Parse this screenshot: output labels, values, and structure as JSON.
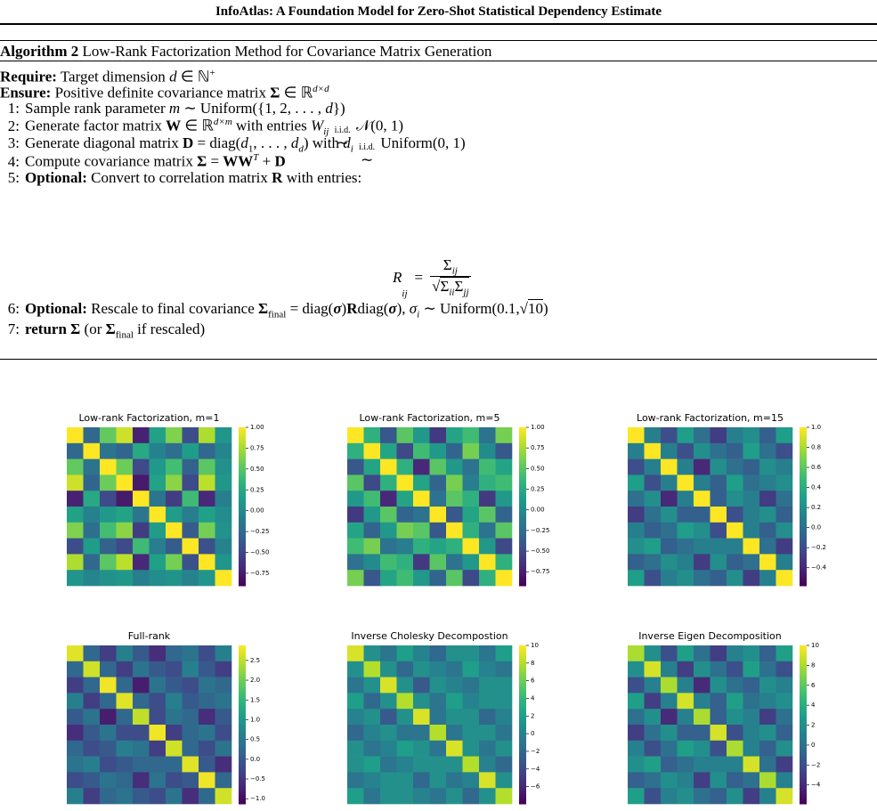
{
  "header": {
    "title": "InfoAtlas: A Foundation Model for Zero-Shot Statistical Dependency Estimate"
  },
  "algorithm": {
    "label": "Algorithm 2",
    "caption": "Low-Rank Factorization Method for Covariance Matrix Generation",
    "require": [
      "Require:",
      "Target dimension",
      "d",
      "∈ ℕ",
      "+"
    ],
    "ensure": [
      "Ensure:",
      "Positive definite covariance matrix",
      "Σ",
      "∈ ℝ",
      "d×d"
    ],
    "step1": [
      "1:",
      "Sample rank parameter",
      "m",
      "∼ Uniform({1, 2, . . . , ",
      "d",
      "})"
    ],
    "step2": [
      "2:",
      "Generate factor matrix",
      "W",
      "∈ ℝ",
      "d×m",
      "with entries",
      "W",
      "ij",
      "i.i.d.",
      "∼",
      "𝒩(0, 1)"
    ],
    "step3": [
      "3:",
      "Generate diagonal matrix",
      "D",
      "= diag(",
      "d",
      "1",
      ", . . . , ",
      "d",
      "d",
      ") with",
      "d",
      "i",
      "i.i.d.",
      "∼",
      "Uniform(0, 1)"
    ],
    "step4": [
      "4:",
      "Compute covariance matrix",
      "Σ",
      "=",
      "WW",
      "T",
      "+",
      "D"
    ],
    "step5": [
      "5:",
      "Optional:",
      "Convert to correlation matrix",
      "R",
      "with entries:"
    ],
    "equation": [
      "R",
      "ij",
      "=",
      "Σ",
      "ij",
      "Σ",
      "ii",
      "Σ",
      "jj"
    ],
    "step6": [
      "6:",
      "Optional:",
      "Rescale to final covariance",
      "Σ",
      "final",
      "= diag(",
      "σ",
      ")",
      "R",
      "diag(",
      "σ",
      "),",
      "σ",
      "i",
      "∼ Uniform(0.1,",
      "√",
      "10",
      ")"
    ],
    "step7": [
      "7:",
      "return",
      "Σ",
      "(or",
      "Σ",
      "final",
      "if rescaled)"
    ]
  },
  "chart_data": [
    {
      "type": "heatmap",
      "title": "Low-rank Factorization, m=1",
      "colormap": "viridis",
      "clim": [
        -0.9,
        1.0
      ],
      "cticks": [
        {
          "value": 1,
          "label": "1.00"
        },
        {
          "value": 0.75,
          "label": "0.75"
        },
        {
          "value": 0.5,
          "label": "0.50"
        },
        {
          "value": 0.25,
          "label": "0.25"
        },
        {
          "value": 0,
          "label": "0.00"
        },
        {
          "value": -0.25,
          "label": "−0.25"
        },
        {
          "value": -0.5,
          "label": "−0.50"
        },
        {
          "value": -0.75,
          "label": "−0.75"
        }
      ],
      "values": [
        [
          1,
          -0.27,
          0.54,
          0.86,
          -0.72,
          0.18,
          0.63,
          -0.45,
          0.77,
          0.09
        ],
        [
          -0.27,
          1,
          -0.18,
          -0.29,
          0.24,
          -0.06,
          -0.21,
          0.15,
          -0.26,
          -0.03
        ],
        [
          0.54,
          -0.18,
          1,
          0.57,
          -0.48,
          0.12,
          0.42,
          -0.3,
          0.51,
          0.06
        ],
        [
          0.86,
          -0.29,
          0.57,
          1,
          -0.76,
          0.19,
          0.67,
          -0.48,
          0.81,
          0.1
        ],
        [
          -0.72,
          0.24,
          -0.48,
          -0.76,
          1,
          -0.16,
          -0.56,
          0.4,
          -0.68,
          -0.08
        ],
        [
          0.18,
          -0.06,
          0.12,
          0.19,
          -0.16,
          1,
          0.14,
          -0.1,
          0.17,
          0.02
        ],
        [
          0.63,
          -0.21,
          0.42,
          0.67,
          -0.56,
          0.14,
          1,
          -0.35,
          0.6,
          0.07
        ],
        [
          -0.45,
          0.15,
          -0.3,
          -0.48,
          0.4,
          -0.1,
          -0.35,
          1,
          -0.43,
          -0.05
        ],
        [
          0.77,
          -0.26,
          0.51,
          0.81,
          -0.68,
          0.17,
          0.6,
          -0.43,
          1,
          0.09
        ],
        [
          0.09,
          -0.03,
          0.06,
          0.1,
          -0.08,
          0.02,
          0.07,
          -0.05,
          0.09,
          1
        ]
      ]
    },
    {
      "type": "heatmap",
      "title": "Low-rank Factorization, m=5",
      "colormap": "viridis",
      "clim": [
        -0.92,
        1.0
      ],
      "cticks": [
        {
          "value": 1,
          "label": "1.00"
        },
        {
          "value": 0.75,
          "label": "0.75"
        },
        {
          "value": 0.5,
          "label": "0.50"
        },
        {
          "value": 0.25,
          "label": "0.25"
        },
        {
          "value": 0,
          "label": "0.00"
        },
        {
          "value": -0.25,
          "label": "−0.25"
        },
        {
          "value": -0.5,
          "label": "−0.50"
        },
        {
          "value": -0.75,
          "label": "−0.75"
        }
      ],
      "values": [
        [
          1,
          0.3,
          -0.4,
          0.5,
          0.1,
          -0.6,
          0.2,
          0.4,
          -0.2,
          0.6
        ],
        [
          0.3,
          1,
          0.2,
          -0.5,
          0.4,
          0.1,
          -0.3,
          0.6,
          0,
          -0.4
        ],
        [
          -0.4,
          0.2,
          1,
          0.3,
          -0.7,
          0.5,
          0.1,
          -0.2,
          0.4,
          0.2
        ],
        [
          0.5,
          -0.5,
          0.3,
          1,
          0.2,
          -0.3,
          0.6,
          -0.1,
          0.3,
          0.4
        ],
        [
          0.1,
          0.4,
          -0.7,
          0.2,
          1,
          -0.2,
          0.5,
          0.3,
          -0.6,
          0.1
        ],
        [
          -0.6,
          0.1,
          0.5,
          -0.3,
          -0.2,
          1,
          -0.4,
          0.2,
          0.5,
          -0.3
        ],
        [
          0.2,
          -0.3,
          0.1,
          0.6,
          0.5,
          -0.4,
          1,
          0.3,
          -0.2,
          0.5
        ],
        [
          0.4,
          0.6,
          -0.2,
          -0.1,
          0.3,
          0.2,
          0.3,
          1,
          0.1,
          -0.5
        ],
        [
          -0.2,
          0,
          0.4,
          0.3,
          -0.6,
          0.5,
          -0.2,
          0.1,
          1,
          0.3
        ],
        [
          0.6,
          -0.4,
          0.2,
          0.4,
          0.1,
          -0.3,
          0.5,
          -0.5,
          0.3,
          1
        ]
      ]
    },
    {
      "type": "heatmap",
      "title": "Low-rank Factorization, m=15",
      "colormap": "viridis",
      "clim": [
        -0.58,
        1.0
      ],
      "cticks": [
        {
          "value": 1,
          "label": "1.0"
        },
        {
          "value": 0.8,
          "label": "0.8"
        },
        {
          "value": 0.6,
          "label": "0.6"
        },
        {
          "value": 0.4,
          "label": "0.4"
        },
        {
          "value": 0.2,
          "label": "0.2"
        },
        {
          "value": 0,
          "label": "0.0"
        },
        {
          "value": -0.2,
          "label": "−0.2"
        },
        {
          "value": -0.4,
          "label": "−0.4"
        }
      ],
      "values": [
        [
          1,
          0.1,
          -0.2,
          0.3,
          0,
          -0.3,
          0.1,
          0.2,
          -0.1,
          0.3
        ],
        [
          0.1,
          1,
          0.1,
          -0.2,
          0.2,
          0,
          -0.1,
          0.3,
          0,
          -0.2
        ],
        [
          -0.2,
          0.1,
          1,
          0.1,
          -0.4,
          0.2,
          0,
          -0.1,
          0.2,
          0.1
        ],
        [
          0.3,
          -0.2,
          0.1,
          1,
          0.1,
          -0.1,
          0.3,
          0,
          0.1,
          0.2
        ],
        [
          0,
          0.2,
          -0.4,
          0.1,
          1,
          -0.1,
          0.2,
          0.1,
          -0.3,
          0
        ],
        [
          -0.3,
          0,
          0.2,
          -0.1,
          -0.1,
          1,
          -0.2,
          0.1,
          0.2,
          -0.1
        ],
        [
          0.1,
          -0.1,
          0,
          0.3,
          0.2,
          -0.2,
          1,
          0.1,
          -0.1,
          0.2
        ],
        [
          0.2,
          0.3,
          -0.1,
          0,
          0.1,
          0.1,
          0.1,
          1,
          0,
          -0.3
        ],
        [
          -0.1,
          0,
          0.2,
          0.1,
          -0.3,
          0.2,
          -0.1,
          0,
          1,
          0.1
        ],
        [
          0.3,
          -0.2,
          0.1,
          0.2,
          0,
          -0.1,
          0.2,
          -0.3,
          0.1,
          1
        ]
      ]
    },
    {
      "type": "heatmap",
      "title": "Full-rank",
      "colormap": "viridis",
      "clim": [
        -1.13,
        2.88
      ],
      "cticks": [
        2.5,
        {
          "value": 2,
          "label": "2.0"
        },
        1.5,
        {
          "value": 1,
          "label": "1.0"
        },
        0.5,
        {
          "value": 0,
          "label": "0.0"
        },
        {
          "value": -0.5,
          "label": "−0.5"
        },
        {
          "value": -1,
          "label": "−1.0"
        }
      ],
      "values": [
        [
          2.7,
          0.2,
          -0.4,
          0.6,
          0,
          -0.6,
          0.2,
          0.4,
          -0.2,
          0.6
        ],
        [
          0.2,
          2.6,
          0.2,
          -0.4,
          0.4,
          0,
          -0.2,
          0.6,
          0,
          -0.4
        ],
        [
          -0.4,
          0.2,
          2.8,
          0.2,
          -0.8,
          0.4,
          0,
          -0.2,
          0.4,
          0.2
        ],
        [
          0.6,
          -0.4,
          0.2,
          2.7,
          0.2,
          -0.2,
          0.6,
          0,
          0.2,
          0.4
        ],
        [
          0,
          0.4,
          -0.8,
          0.2,
          2.5,
          -0.2,
          0.4,
          0.2,
          -0.6,
          0
        ],
        [
          -0.6,
          0,
          0.4,
          -0.2,
          -0.2,
          2.8,
          -0.4,
          0.2,
          0.4,
          -0.2
        ],
        [
          0.2,
          -0.2,
          0,
          0.6,
          0.4,
          -0.4,
          2.6,
          0.2,
          -0.2,
          0.4
        ],
        [
          0.4,
          0.6,
          -0.2,
          0,
          0.2,
          0.2,
          0.2,
          2.7,
          0,
          -0.6
        ],
        [
          -0.2,
          0,
          0.4,
          0.2,
          -0.6,
          0.4,
          -0.2,
          0,
          2.8,
          0.2
        ],
        [
          0.6,
          -0.4,
          0.2,
          0.4,
          0,
          -0.2,
          0.4,
          -0.6,
          0.2,
          2.6
        ]
      ]
    },
    {
      "type": "heatmap",
      "title": "Inverse Cholesky Decompostion",
      "colormap": "viridis",
      "clim": [
        -7.96,
        10
      ],
      "cticks": [
        10,
        8,
        6,
        4,
        2,
        0,
        {
          "value": -2,
          "label": "−2"
        },
        {
          "value": -4,
          "label": "−4"
        },
        {
          "value": -6,
          "label": "−6"
        }
      ],
      "values": [
        [
          9,
          1,
          -1,
          2,
          0,
          -2,
          1,
          1,
          -1,
          2
        ],
        [
          1,
          8,
          1,
          -2,
          1,
          0,
          -1,
          2,
          0,
          -1
        ],
        [
          -1,
          1,
          9,
          1,
          -3,
          1,
          0,
          -1,
          1,
          1
        ],
        [
          2,
          -2,
          1,
          8,
          1,
          -1,
          2,
          0,
          1,
          1
        ],
        [
          0,
          1,
          -3,
          1,
          9,
          -1,
          1,
          1,
          -2,
          0
        ],
        [
          -2,
          0,
          1,
          -1,
          -1,
          8,
          -1,
          1,
          1,
          -1
        ],
        [
          1,
          -1,
          0,
          2,
          1,
          -1,
          9,
          1,
          -1,
          1
        ],
        [
          1,
          2,
          -1,
          0,
          1,
          1,
          1,
          8,
          0,
          -2
        ],
        [
          -1,
          0,
          1,
          1,
          -2,
          1,
          -1,
          0,
          9,
          1
        ],
        [
          2,
          -1,
          1,
          1,
          0,
          -1,
          1,
          -2,
          1,
          8
        ]
      ]
    },
    {
      "type": "heatmap",
      "title": "Inverse Eigen Decomposition",
      "colormap": "viridis",
      "clim": [
        -5.9,
        10
      ],
      "cticks": [
        10,
        8,
        6,
        4,
        2,
        0,
        {
          "value": -2,
          "label": "−2"
        },
        {
          "value": -4,
          "label": "−4"
        }
      ],
      "values": [
        [
          8,
          2,
          -2,
          3,
          0,
          -3,
          1,
          2,
          -1,
          3
        ],
        [
          2,
          9,
          1,
          -3,
          2,
          0,
          -2,
          3,
          0,
          -2
        ],
        [
          -2,
          1,
          8,
          1,
          -4,
          2,
          0,
          -1,
          2,
          1
        ],
        [
          3,
          -3,
          1,
          9,
          1,
          -1,
          3,
          0,
          1,
          2
        ],
        [
          0,
          2,
          -4,
          1,
          8,
          -1,
          2,
          1,
          -3,
          0
        ],
        [
          -3,
          0,
          2,
          -1,
          -1,
          9,
          -2,
          1,
          2,
          -1
        ],
        [
          1,
          -2,
          0,
          3,
          2,
          -2,
          8,
          1,
          -1,
          2
        ],
        [
          2,
          3,
          -1,
          0,
          1,
          1,
          1,
          9,
          0,
          -3
        ],
        [
          -1,
          0,
          2,
          1,
          -3,
          2,
          -1,
          0,
          8,
          1
        ],
        [
          3,
          -2,
          1,
          2,
          0,
          -1,
          2,
          -3,
          1,
          9
        ]
      ]
    }
  ]
}
